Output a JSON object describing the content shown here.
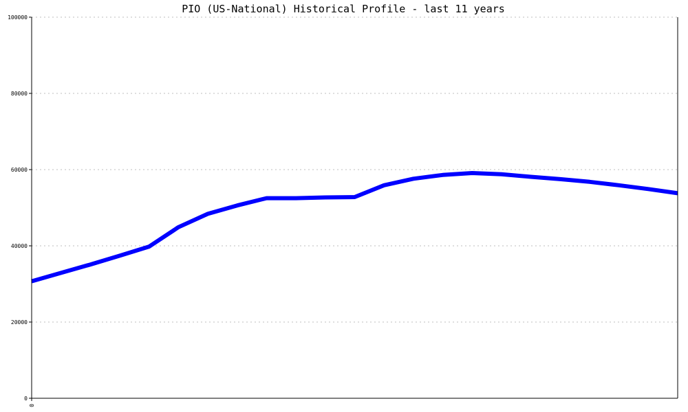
{
  "chart_data": {
    "type": "line",
    "title": "PIO (US-National) Historical Profile - last 11 years",
    "xlabel": "",
    "ylabel": "",
    "x_tick_labels": [
      "0"
    ],
    "x": [
      0,
      1,
      2,
      3,
      4,
      5,
      6,
      7,
      8,
      9,
      10,
      11,
      12,
      13,
      14,
      15,
      16,
      17,
      18,
      19,
      20,
      21,
      22
    ],
    "xlim": [
      0,
      22
    ],
    "ylim": [
      0,
      100000
    ],
    "y_ticks": [
      0,
      20000,
      40000,
      60000,
      80000,
      100000
    ],
    "y_tick_labels": [
      "0",
      "20000",
      "40000",
      "60000",
      "80000",
      "100000"
    ],
    "grid": true,
    "series": [
      {
        "values": [
          30700,
          32900,
          35100,
          37400,
          39800,
          44900,
          48400,
          50600,
          52500,
          52500,
          52700,
          52800,
          55900,
          57600,
          58600,
          59100,
          58800,
          58100,
          57500,
          56800,
          55900,
          54900,
          53800
        ],
        "color": "#0000ff"
      }
    ]
  }
}
